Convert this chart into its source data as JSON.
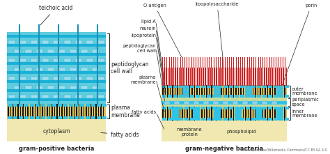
{
  "bg_color": "#ffffff",
  "cyan": "#2ec4e8",
  "cyan_light": "#7dd8ee",
  "cyan_mid": "#45c8e0",
  "dark": "#222222",
  "olive": "#b8a830",
  "olive_light": "#d4c060",
  "tan": "#f0e8b0",
  "tan_dark": "#e8d880",
  "red_stripe": "#cc2222",
  "gram_pos_label": "gram-positive bacteria",
  "gram_neg_label": "gram-negative bacteria",
  "credit": "CNX OpenStax/Wikimedia Commons/CC BY-SA 4.0"
}
